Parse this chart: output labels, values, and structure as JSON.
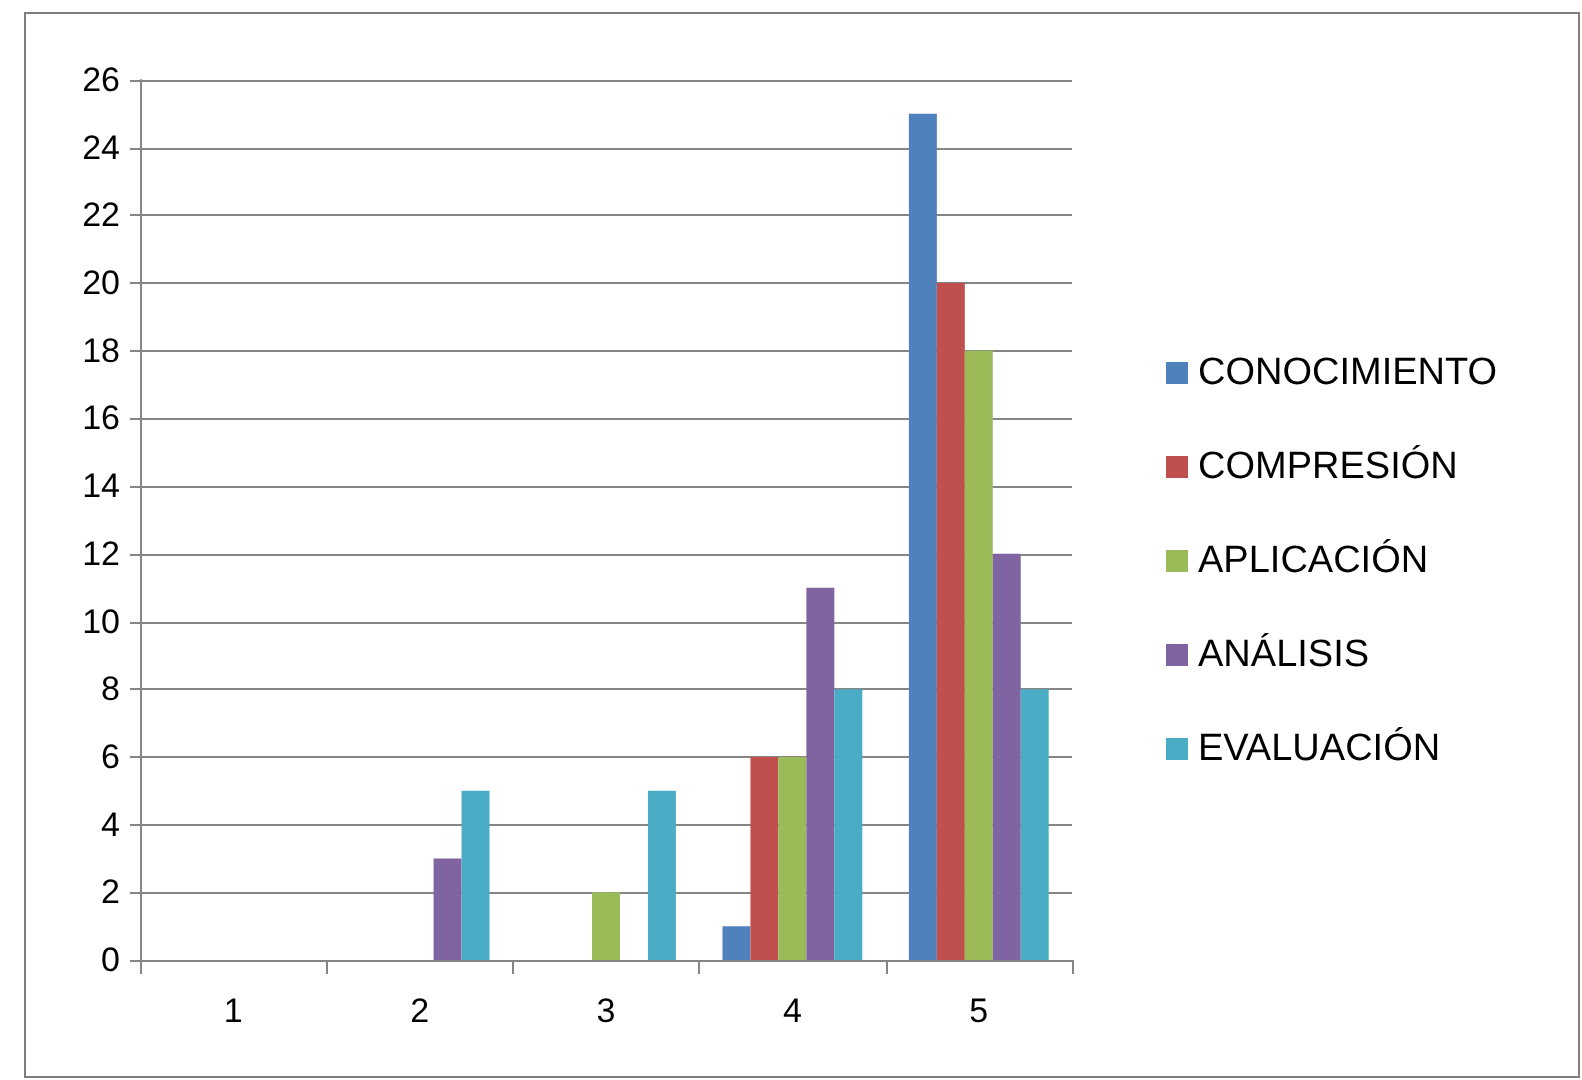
{
  "chart_data": {
    "type": "bar",
    "categories": [
      "1",
      "2",
      "3",
      "4",
      "5"
    ],
    "series": [
      {
        "name": "CONOCIMIENTO",
        "color": "#4f81bd",
        "values": [
          0,
          0,
          0,
          1,
          25
        ]
      },
      {
        "name": "COMPRESIÓN",
        "color": "#c0504d",
        "values": [
          0,
          0,
          0,
          6,
          20
        ]
      },
      {
        "name": "APLICACIÓN",
        "color": "#9bbb59",
        "values": [
          0,
          0,
          2,
          6,
          18
        ]
      },
      {
        "name": "ANÁLISIS",
        "color": "#8064a2",
        "values": [
          0,
          3,
          0,
          11,
          12
        ]
      },
      {
        "name": "EVALUACIÓN",
        "color": "#4bacc6",
        "values": [
          0,
          5,
          5,
          8,
          8
        ]
      }
    ],
    "ylim": [
      0,
      26
    ],
    "yticks": [
      0,
      2,
      4,
      6,
      8,
      10,
      12,
      14,
      16,
      18,
      20,
      22,
      24,
      26
    ],
    "grid": "y",
    "legend": "right"
  }
}
